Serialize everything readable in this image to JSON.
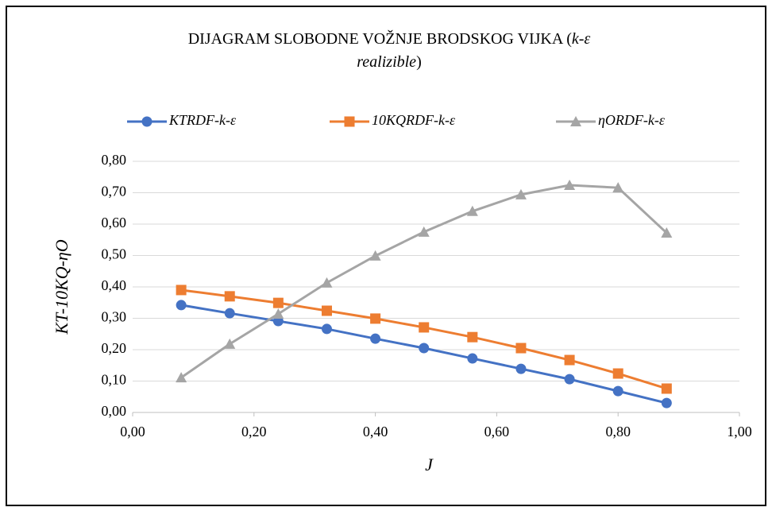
{
  "chart_data": {
    "type": "line",
    "title": [
      "DIJAGRAM SLOBODNE VOŽNJE BRODSKOG VIJKA (",
      "k-ε",
      "realizible",
      ")"
    ],
    "xlabel": "J",
    "ylabel": "KT-10KQ-ηO",
    "x": [
      0.08,
      0.16,
      0.24,
      0.32,
      0.4,
      0.48,
      0.56,
      0.64,
      0.72,
      0.8,
      0.88
    ],
    "series": [
      {
        "name": "KTRDF-k-ε",
        "color": "#4472c4",
        "marker": "circle",
        "values": [
          0.342,
          0.316,
          0.291,
          0.266,
          0.235,
          0.205,
          0.172,
          0.139,
          0.106,
          0.068,
          0.03
        ]
      },
      {
        "name": "10KQRDF-k-ε",
        "color": "#ed7d31",
        "marker": "square",
        "values": [
          0.39,
          0.37,
          0.349,
          0.324,
          0.299,
          0.271,
          0.24,
          0.205,
          0.167,
          0.124,
          0.076
        ]
      },
      {
        "name": "ηORDF-k-ε",
        "color": "#a5a5a5",
        "marker": "triangle",
        "values": [
          0.111,
          0.218,
          0.314,
          0.413,
          0.499,
          0.575,
          0.641,
          0.694,
          0.724,
          0.716,
          0.572
        ]
      }
    ],
    "xlim": [
      0,
      1
    ],
    "xticks": [
      {
        "value": 0,
        "label": "0,00"
      },
      {
        "value": 0.2,
        "label": "0,20"
      },
      {
        "value": 0.4,
        "label": "0,40"
      },
      {
        "value": 0.6,
        "label": "0,60"
      },
      {
        "value": 0.8,
        "label": "0,80"
      },
      {
        "value": 1,
        "label": "1,00"
      }
    ],
    "ylim": [
      0,
      0.8
    ],
    "yticks": [
      {
        "value": 0,
        "label": "0,00"
      },
      {
        "value": 0.1,
        "label": "0,10"
      },
      {
        "value": 0.2,
        "label": "0,20"
      },
      {
        "value": 0.3,
        "label": "0,30"
      },
      {
        "value": 0.4,
        "label": "0,40"
      },
      {
        "value": 0.5,
        "label": "0,50"
      },
      {
        "value": 0.6,
        "label": "0,60"
      },
      {
        "value": 0.7,
        "label": "0,70"
      },
      {
        "value": 0.8,
        "label": "0,80"
      }
    ],
    "grid": true,
    "legend": "top"
  }
}
